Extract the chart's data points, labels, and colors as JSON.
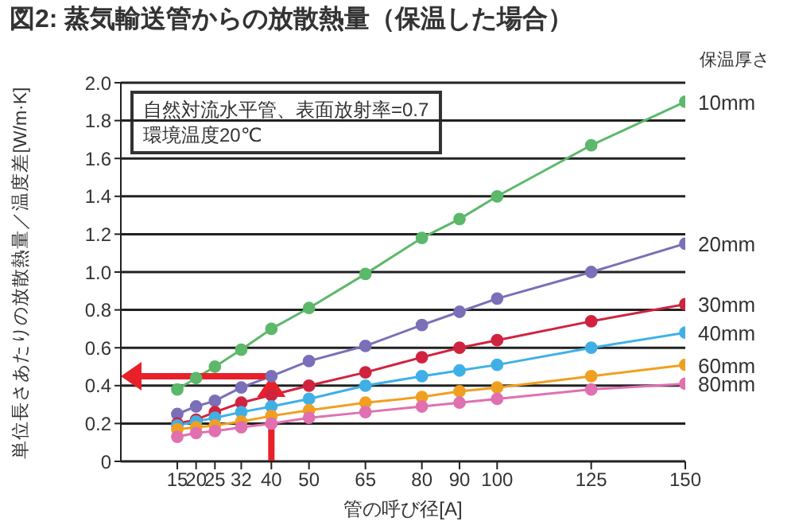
{
  "chart_data": {
    "type": "line",
    "title": "図2: 蒸気輸送管からの放散熱量（保温した場合）",
    "xlabel": "管の呼び径[A]",
    "ylabel": "単位長さあたりの放散熱量／温度差[W/m·K]",
    "legend_title": "保温厚さ",
    "annotations": [
      "自然対流水平管、表面放射率=0.7",
      "環境温度20℃"
    ],
    "x": [
      15,
      20,
      25,
      32,
      40,
      50,
      65,
      80,
      90,
      100,
      125,
      150
    ],
    "xlim": [
      0,
      150
    ],
    "xticks": [
      15,
      20,
      25,
      32,
      40,
      50,
      65,
      80,
      90,
      100,
      125,
      150
    ],
    "ylim": [
      0,
      2
    ],
    "yticks": [
      0,
      0.2,
      0.4,
      0.6,
      0.8,
      {
        "value": 1,
        "label": "1.0"
      },
      1.2,
      1.4,
      1.6,
      1.8,
      {
        "value": 2,
        "label": "2.0"
      }
    ],
    "grid": "y",
    "marker": "circle",
    "line_style": "solid",
    "ref_lines": [
      {
        "axis": "x",
        "value": 40,
        "color": "#e8202a"
      },
      {
        "axis": "y",
        "value": 0.45,
        "color": "#e8202a"
      }
    ],
    "series": [
      {
        "name": "10mm",
        "color": "#5cb86a",
        "values": [
          0.38,
          0.44,
          0.5,
          0.59,
          0.7,
          0.81,
          0.99,
          1.18,
          1.28,
          1.4,
          1.67,
          1.9
        ]
      },
      {
        "name": "20mm",
        "color": "#7a6fb8",
        "values": [
          0.25,
          0.29,
          0.32,
          0.39,
          0.45,
          0.53,
          0.61,
          0.72,
          0.79,
          0.86,
          1.0,
          1.15
        ]
      },
      {
        "name": "30mm",
        "color": "#d0233f",
        "values": [
          0.2,
          0.22,
          0.26,
          0.31,
          0.35,
          0.4,
          0.47,
          0.55,
          0.6,
          0.64,
          0.74,
          0.83
        ]
      },
      {
        "name": "40mm",
        "color": "#3fb0e6",
        "values": [
          0.19,
          0.21,
          0.23,
          0.26,
          0.29,
          0.33,
          0.4,
          0.45,
          0.48,
          0.51,
          0.6,
          0.68
        ]
      },
      {
        "name": "60mm",
        "color": "#f0a020",
        "values": [
          0.17,
          0.18,
          0.19,
          0.21,
          0.24,
          0.27,
          0.31,
          0.34,
          0.37,
          0.39,
          0.45,
          0.51
        ]
      },
      {
        "name": "80mm",
        "color": "#e070b0",
        "values": [
          0.13,
          0.15,
          0.16,
          0.18,
          0.2,
          0.23,
          0.26,
          0.29,
          0.31,
          0.33,
          0.38,
          0.41
        ]
      }
    ]
  }
}
